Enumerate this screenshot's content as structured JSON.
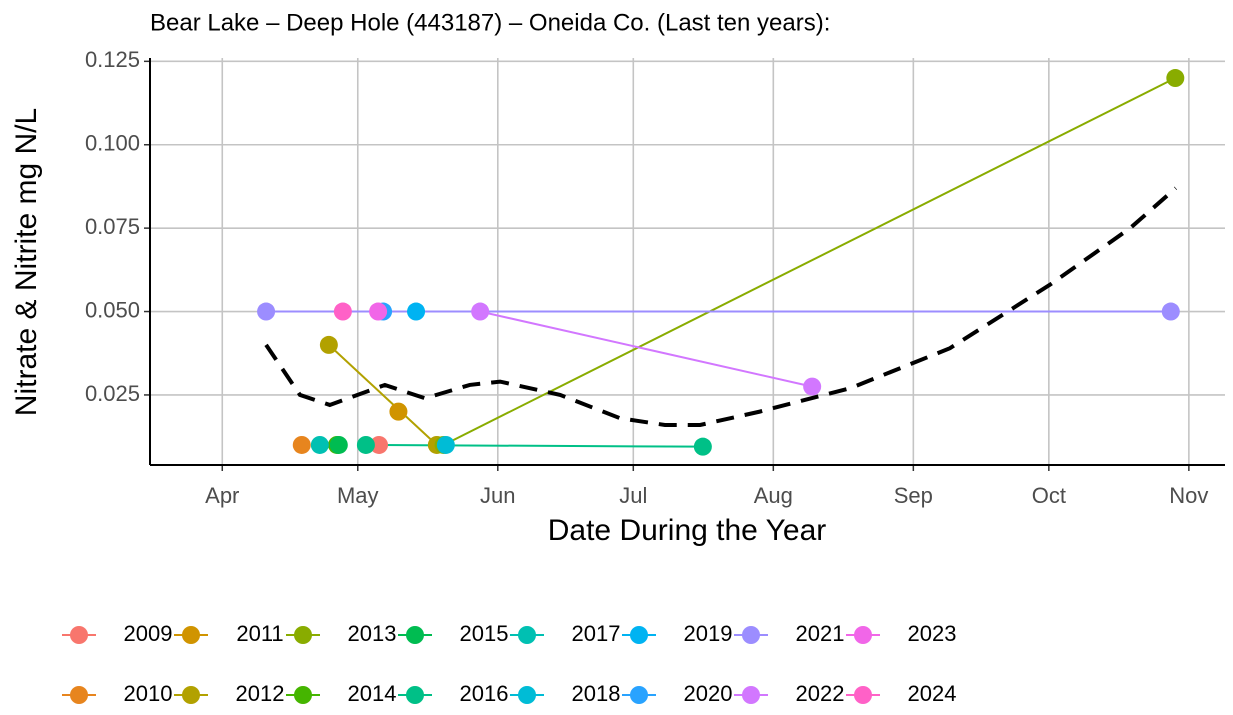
{
  "chart_data": {
    "type": "scatter",
    "title": "Bear Lake – Deep Hole (443187) – Oneida Co.  (Last ten years):",
    "x_label": "Date During the Year",
    "y_label": "Nitrate & Nitrite mg N/L",
    "xlim": [
      75,
      313
    ],
    "xticks": [
      {
        "value": 91,
        "label": "Apr"
      },
      {
        "value": 121,
        "label": "May"
      },
      {
        "value": 152,
        "label": "Jun"
      },
      {
        "value": 182,
        "label": "Jul"
      },
      {
        "value": 213,
        "label": "Aug"
      },
      {
        "value": 244,
        "label": "Sep"
      },
      {
        "value": 274,
        "label": "Oct"
      },
      {
        "value": 305,
        "label": "Nov"
      }
    ],
    "ylim": [
      0.004,
      0.126
    ],
    "yticks": [
      0.025,
      {
        "value": 0.05,
        "label": "0.050"
      },
      0.075,
      {
        "value": 0.1,
        "label": "0.100"
      },
      0.125
    ],
    "grid": true,
    "legend": "bottom",
    "series": [
      {
        "name": "2009",
        "color": "#F8766D",
        "x": [
          125.7
        ],
        "values": [
          0.01
        ]
      },
      {
        "name": "2010",
        "color": "#E7851E",
        "x": [
          108.6
        ],
        "values": [
          0.01
        ]
      },
      {
        "name": "2011",
        "color": "#D09400",
        "x": [
          130
        ],
        "values": [
          0.02
        ]
      },
      {
        "name": "2012",
        "color": "#B2A100",
        "x": [
          114.6,
          138.5
        ],
        "values": [
          0.04,
          0.01
        ]
      },
      {
        "name": "2013",
        "color": "#89AC00",
        "x": [
          140,
          302
        ],
        "values": [
          0.01,
          0.12
        ]
      },
      {
        "name": "2014",
        "color": "#45B500",
        "x": [
          116.4
        ],
        "values": [
          0.01
        ]
      },
      {
        "name": "2015",
        "color": "#00BC51",
        "x": [
          116.8
        ],
        "values": [
          0.01
        ]
      },
      {
        "name": "2016",
        "color": "#00C087",
        "x": [
          122.8,
          197.4
        ],
        "values": [
          0.01,
          0.0095
        ]
      },
      {
        "name": "2017",
        "color": "#00C0B2",
        "x": [
          112.6
        ],
        "values": [
          0.01
        ]
      },
      {
        "name": "2018",
        "color": "#00BCD6",
        "x": [
          140.5
        ],
        "values": [
          0.01
        ]
      },
      {
        "name": "2019",
        "color": "#00B3F2",
        "x": [
          133.9
        ],
        "values": [
          0.05
        ]
      },
      {
        "name": "2020",
        "color": "#29A3FF",
        "x": [
          126.6
        ],
        "values": [
          0.05
        ]
      },
      {
        "name": "2021",
        "color": "#9C8DFF",
        "x": [
          100.7,
          301
        ],
        "values": [
          0.05,
          0.05
        ]
      },
      {
        "name": "2022",
        "color": "#D277FF",
        "x": [
          148.1,
          221.6
        ],
        "values": [
          0.05,
          0.0275
        ]
      },
      {
        "name": "2023",
        "color": "#F166E8",
        "x": [
          125.5
        ],
        "values": [
          0.05
        ]
      },
      {
        "name": "2024",
        "color": "#FF61C7",
        "x": [
          117.7
        ],
        "values": [
          0.05
        ]
      }
    ],
    "trend": {
      "color": "#000000",
      "x": [
        100.7,
        108.2,
        114.8,
        127.0,
        135.9,
        145.8,
        152.5,
        165.8,
        179.1,
        189.0,
        196.8,
        210.0,
        230.0,
        252.1,
        274.2,
        292.0,
        302.1
      ],
      "values": [
        0.04,
        0.025,
        0.022,
        0.028,
        0.024,
        0.028,
        0.029,
        0.025,
        0.018,
        0.016,
        0.016,
        0.02,
        0.027,
        0.039,
        0.058,
        0.075,
        0.087
      ]
    }
  }
}
